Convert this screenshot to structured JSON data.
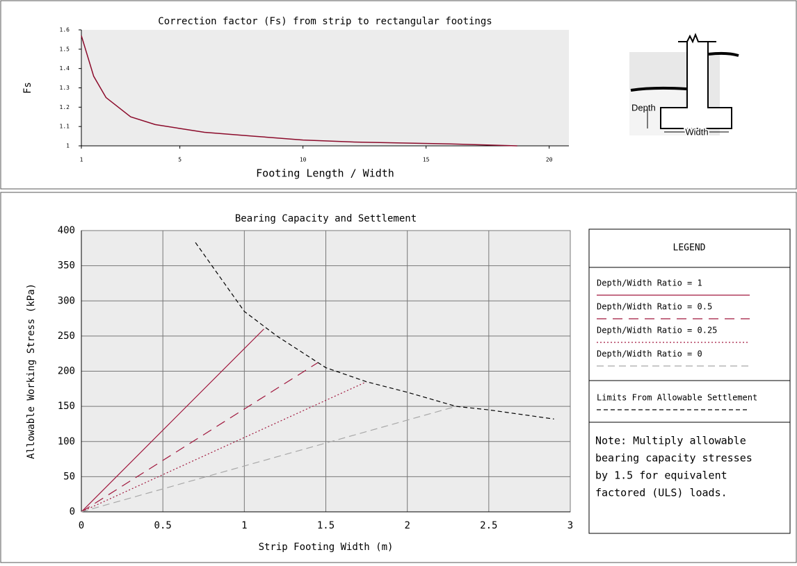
{
  "chart_data": [
    {
      "type": "line",
      "title": "Correction factor (Fs) from strip to rectangular footings",
      "x_label": "Footing Length / Width",
      "y_label": "Fs",
      "x": [
        1,
        1.5,
        2,
        3,
        4,
        5,
        6,
        8,
        10,
        12,
        14,
        16,
        18.7
      ],
      "values": [
        1.57,
        1.36,
        1.25,
        1.15,
        1.11,
        1.09,
        1.07,
        1.05,
        1.03,
        1.02,
        1.015,
        1.01,
        1.0
      ],
      "color": "#8b0a2a",
      "xlim": [
        1,
        20.8
      ],
      "xticks": [
        1,
        5,
        10,
        15,
        20
      ],
      "ylim": [
        1,
        1.6
      ],
      "yticks": [
        1,
        1.1,
        1.2,
        1.3,
        1.4,
        1.5,
        1.6
      ],
      "grid": false
    },
    {
      "type": "line",
      "title": "Bearing Capacity and Settlement",
      "x_label": "Strip Footing Width (m)",
      "y_label": "Allowable Working Stress (kPa)",
      "legend_title": "LEGEND",
      "note": [
        "Note: Multiply allowable",
        "bearing capacity stresses",
        "by 1.5 for equivalent",
        "factored (ULS) loads."
      ],
      "series": [
        {
          "name": "Depth/Width Ratio = 1",
          "color": "#a0163c",
          "dash": "solid",
          "x": [
            0,
            1.12
          ],
          "values": [
            0,
            260
          ]
        },
        {
          "name": "Depth/Width Ratio = 0.5",
          "color": "#a0163c",
          "dash": "long",
          "x": [
            0,
            1.45
          ],
          "values": [
            0,
            212
          ]
        },
        {
          "name": "Depth/Width Ratio = 0.25",
          "color": "#a0163c",
          "dash": "dotted",
          "x": [
            0,
            1.75
          ],
          "values": [
            0,
            185
          ]
        },
        {
          "name": "Depth/Width Ratio = 0",
          "color": "#a8a8a8",
          "dash": "dashed",
          "x": [
            0,
            2.3
          ],
          "values": [
            0,
            150
          ]
        },
        {
          "name": "Limits From Allowable Settlement",
          "color": "#000000",
          "dash": "short",
          "x": [
            0.7,
            1.0,
            1.2,
            1.5,
            1.75,
            2.0,
            2.3,
            2.5,
            2.9
          ],
          "values": [
            383,
            285,
            250,
            205,
            185,
            170,
            150,
            145,
            132
          ]
        }
      ],
      "xlim": [
        0,
        3
      ],
      "xticks": [
        0,
        0.5,
        1,
        1.5,
        2,
        2.5,
        3
      ],
      "ylim": [
        0,
        400
      ],
      "yticks": [
        0,
        50,
        100,
        150,
        200,
        250,
        300,
        350,
        400
      ],
      "grid": true
    }
  ],
  "diagram": {
    "depth_label": "Depth",
    "width_label": "Width"
  }
}
